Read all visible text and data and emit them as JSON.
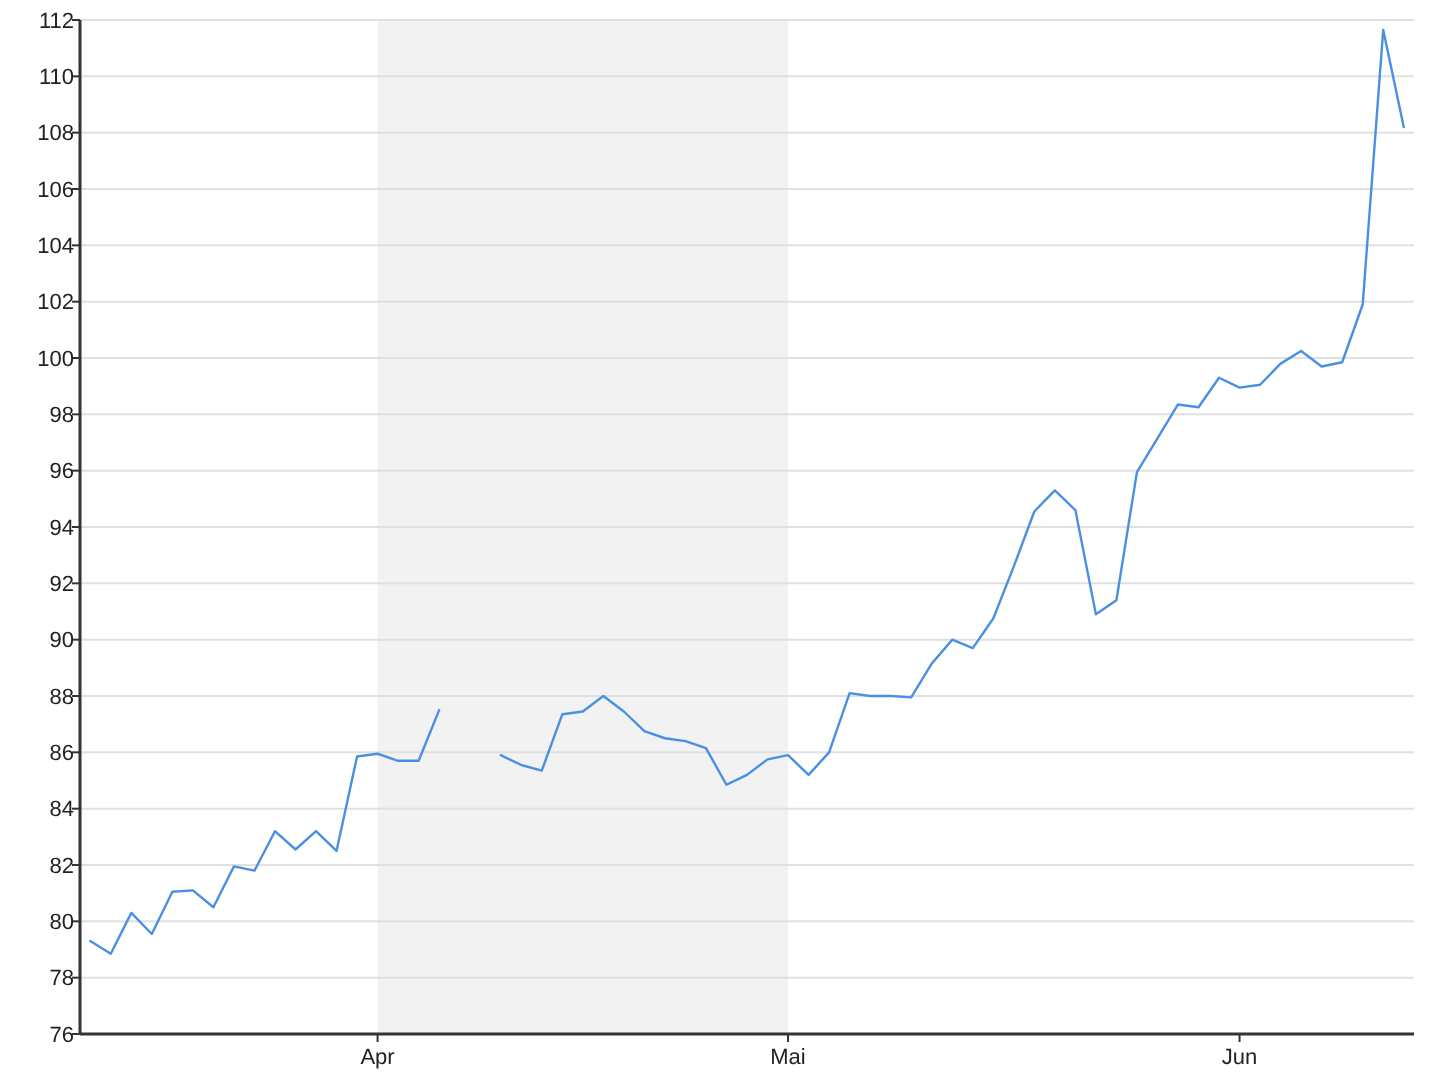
{
  "chart_data": {
    "type": "line",
    "categories": [
      null,
      null,
      null,
      null,
      null,
      null,
      null,
      null,
      null,
      null,
      null,
      null,
      null,
      null,
      "Apr",
      null,
      null,
      null,
      null,
      null,
      null,
      null,
      null,
      null,
      null,
      null,
      null,
      null,
      null,
      null,
      null,
      null,
      null,
      null,
      "Mai",
      null,
      null,
      null,
      null,
      null,
      null,
      null,
      null,
      null,
      null,
      null,
      null,
      null,
      null,
      null,
      null,
      null,
      null,
      null,
      null,
      null,
      "Jun",
      null,
      null,
      null,
      null,
      null,
      null,
      null,
      null
    ],
    "series": [
      {
        "color": "#4a90e2",
        "values": [
          79.3,
          78.85,
          80.3,
          79.55,
          81.05,
          81.1,
          80.5,
          81.95,
          81.8,
          83.2,
          82.55,
          83.2,
          82.5,
          85.85,
          85.95,
          85.7,
          85.7,
          87.5,
          null,
          null,
          85.9,
          85.55,
          85.35,
          87.35,
          87.45,
          88.0,
          87.45,
          86.75,
          86.5,
          86.4,
          86.15,
          84.85,
          85.2,
          85.75,
          85.9,
          85.2,
          86.0,
          88.1,
          88.0,
          88.0,
          87.95,
          89.15,
          90.0,
          89.7,
          90.75,
          92.6,
          94.55,
          95.3,
          94.6,
          90.9,
          91.4,
          95.95,
          97.15,
          98.35,
          98.25,
          99.3,
          98.95,
          99.05,
          99.8,
          100.25,
          99.7,
          99.85,
          101.9,
          111.65,
          108.2
        ]
      }
    ],
    "ylim": [
      76,
      112
    ],
    "yticks": [
      76,
      78,
      80,
      82,
      84,
      86,
      88,
      90,
      92,
      94,
      96,
      98,
      100,
      102,
      104,
      106,
      108,
      110,
      112
    ],
    "grid": "y",
    "line_style": "solid",
    "marker": "none",
    "bands": [
      {
        "axis": "x",
        "from": "Apr",
        "to": "Mai",
        "color": "#f2f2f2"
      }
    ]
  }
}
